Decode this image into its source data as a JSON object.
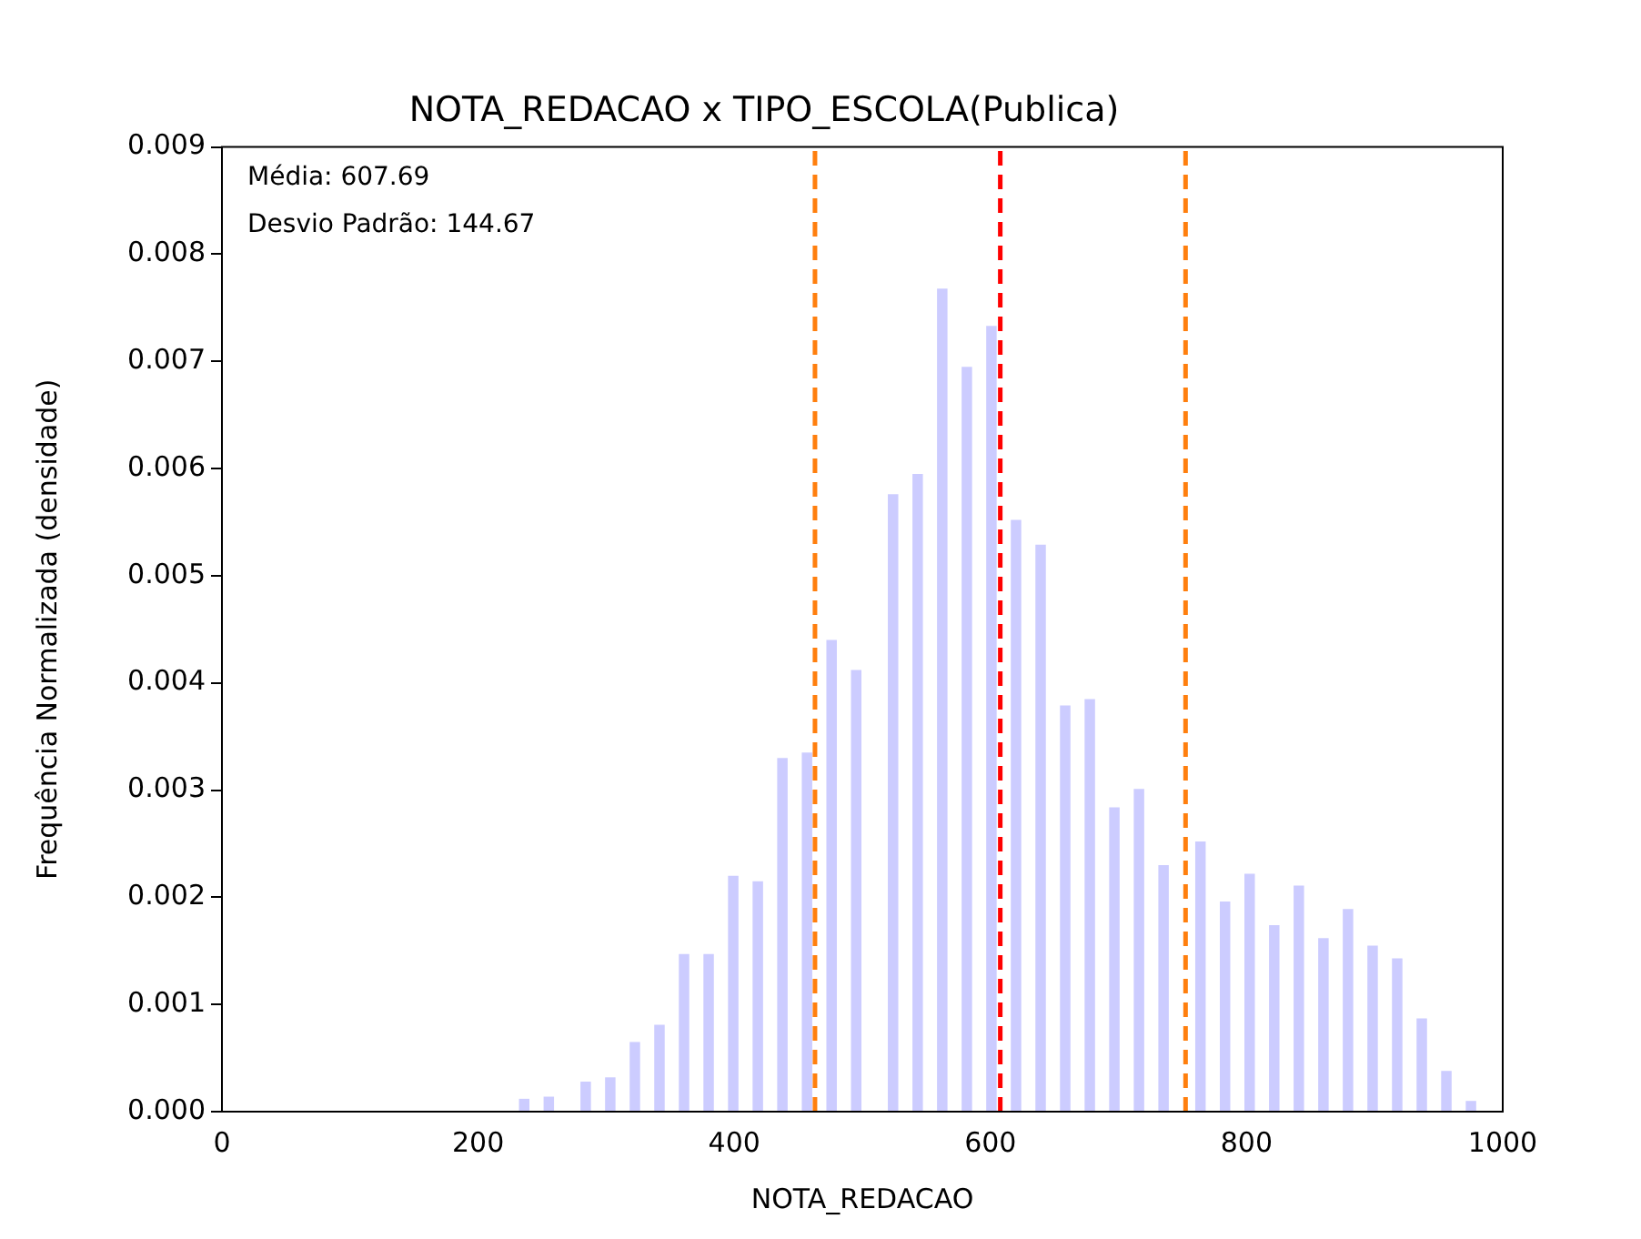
{
  "chart_data": {
    "type": "histogram",
    "title": "NOTA_REDACAO x TIPO_ESCOLA(Publica)",
    "xlabel": "NOTA_REDACAO",
    "ylabel": "Frequência Normalizada (densidade)",
    "bins": [
      20,
      29.6,
      39.2,
      48.8,
      58.4,
      68,
      77.6,
      87.2,
      96.8,
      106.4,
      116,
      125.6,
      135.2,
      144.8,
      154.4,
      164,
      173.6,
      183.2,
      192.8,
      202.4,
      212,
      221.6,
      231.2,
      240.8,
      250.4,
      260,
      269.6,
      279.2,
      288.8,
      298.4,
      308,
      317.6,
      327.2,
      336.8,
      346.4,
      356,
      365.6,
      375.2,
      384.8,
      394.4,
      404,
      413.6,
      423.2,
      432.8,
      442.4,
      452,
      461.6,
      471.2,
      480.8,
      490.4,
      500,
      509.6,
      519.2,
      528.8,
      538.4,
      548,
      557.6,
      567.2,
      576.8,
      586.4,
      596,
      605.6,
      615.2,
      624.8,
      634.4,
      644,
      653.6,
      663.2,
      672.8,
      682.4,
      692,
      701.6,
      711.2,
      720.8,
      730.4,
      740,
      749.6,
      759.2,
      768.8,
      778.4,
      788,
      797.6,
      807.2,
      816.8,
      826.4,
      836,
      845.6,
      855.2,
      864.8,
      874.4,
      884,
      893.6,
      903.2,
      912.8,
      922.4,
      932,
      941.6,
      951.2,
      960.8,
      970.4,
      980
    ],
    "values": [
      0,
      0,
      0,
      0,
      0,
      0,
      0,
      0,
      0,
      0,
      0,
      0,
      0,
      0,
      0,
      0,
      0,
      0,
      0,
      0,
      0,
      0,
      0.00012,
      0,
      0.00014,
      0,
      0,
      0.00028,
      0,
      0.00032,
      0,
      0.00065,
      0,
      0.00081,
      0,
      0.00147,
      0,
      0.00147,
      0,
      0.0022,
      0,
      0.00215,
      0,
      0.0033,
      0,
      0.00335,
      0,
      0.0044,
      0,
      0.00412,
      0,
      0,
      0.00576,
      0,
      0.00595,
      0,
      0.00768,
      0,
      0.00695,
      0,
      0.00733,
      0,
      0.00552,
      0,
      0.00529,
      0,
      0.00379,
      0,
      0.00385,
      0,
      0.00284,
      0,
      0.00301,
      0,
      0.0023,
      0,
      0,
      0.00252,
      0,
      0.00196,
      0,
      0.00222,
      0,
      0.00174,
      0,
      0.00211,
      0,
      0.00162,
      0,
      0.00189,
      0,
      0.00155,
      0,
      0.00143,
      0,
      0.00087,
      0,
      0.00038,
      0,
      0.0001
    ],
    "color": "#ccccff",
    "xlim": [
      0,
      1000
    ],
    "xticks": [
      0,
      200,
      400,
      600,
      800,
      1000
    ],
    "ylim": [
      0,
      0.009
    ],
    "yticks": [
      {
        "value": 0,
        "label": "0.000"
      },
      {
        "value": 0.001,
        "label": "0.001"
      },
      {
        "value": 0.002,
        "label": "0.002"
      },
      {
        "value": 0.003,
        "label": "0.003"
      },
      {
        "value": 0.004,
        "label": "0.004"
      },
      {
        "value": 0.005,
        "label": "0.005"
      },
      {
        "value": 0.006,
        "label": "0.006"
      },
      {
        "value": 0.007,
        "label": "0.007"
      },
      {
        "value": 0.008,
        "label": "0.008"
      },
      {
        "value": 0.009,
        "label": "0.009"
      }
    ],
    "ref_lines": [
      {
        "axis": "x",
        "value": 463.02,
        "color": "#ff7f0e",
        "line_style": "dashed"
      },
      {
        "axis": "x",
        "value": 607.69,
        "color": "#ff0000",
        "line_style": "dashed"
      },
      {
        "axis": "x",
        "value": 752.36,
        "color": "#ff7f0e",
        "line_style": "dashed"
      }
    ],
    "annotations": [
      "Média: 607.69",
      "Desvio Padrão: 144.67"
    ],
    "grid": false,
    "legend": false
  }
}
